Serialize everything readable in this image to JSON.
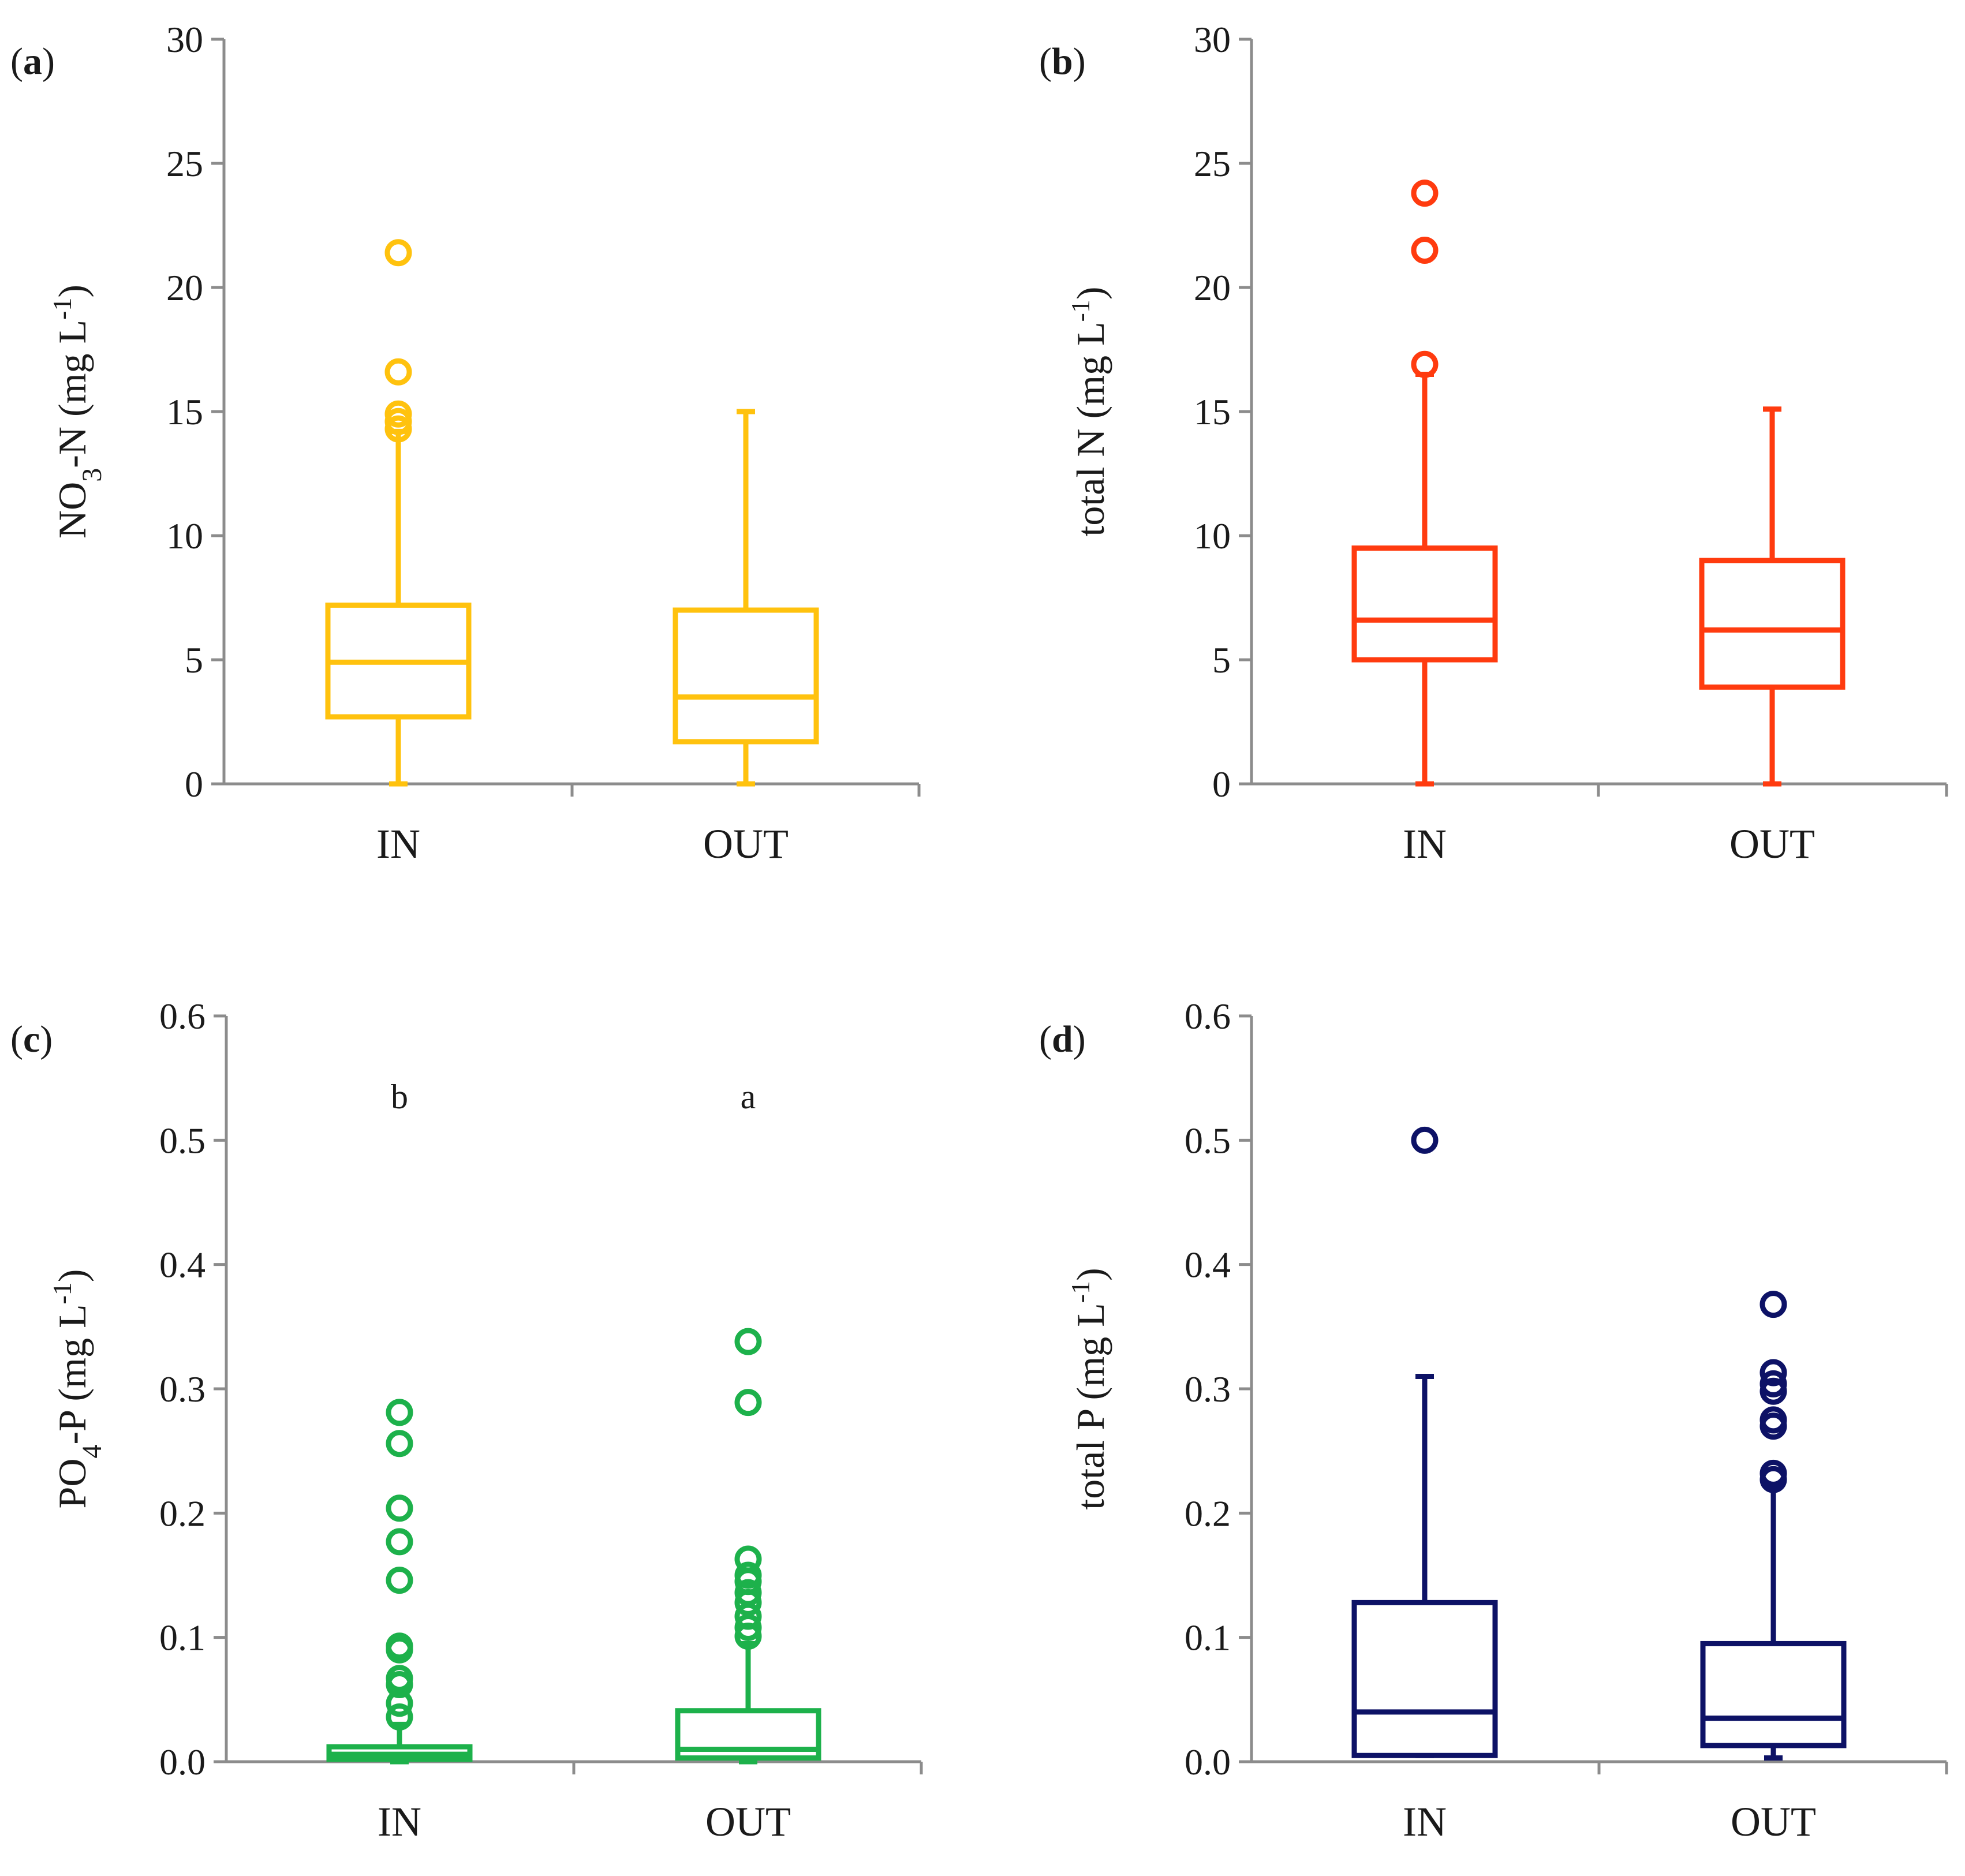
{
  "chart_data": [
    {
      "panel": "a",
      "type": "box",
      "color": "#FFC20E",
      "ylabel": {
        "main": "NO",
        "sub": "3",
        "rest": "-N (mg L",
        "sup": "-1",
        "end": ")"
      },
      "ylim": [
        0,
        30
      ],
      "yticks": [
        "0",
        "5",
        "10",
        "15",
        "20",
        "25",
        "30"
      ],
      "tickvalues": [
        0,
        5,
        10,
        15,
        20,
        25,
        30
      ],
      "categories": [
        "IN",
        "OUT"
      ],
      "boxes": [
        {
          "min": 0,
          "q1": 2.7,
          "median": 4.9,
          "q3": 7.2,
          "max": 14.2,
          "outliers": [
            14.3,
            14.6,
            14.9,
            16.6,
            21.4
          ]
        },
        {
          "min": 0,
          "q1": 1.7,
          "median": 3.5,
          "q3": 7.0,
          "max": 15.0,
          "outliers": []
        }
      ],
      "significance": []
    },
    {
      "panel": "b",
      "type": "box",
      "color": "#FF3B0F",
      "ylabel": {
        "main": "total N (mg L",
        "sub": "",
        "rest": "",
        "sup": "-1",
        "end": ")"
      },
      "ylim": [
        0,
        30
      ],
      "yticks": [
        "0",
        "5",
        "10",
        "15",
        "20",
        "25",
        "30"
      ],
      "tickvalues": [
        0,
        5,
        10,
        15,
        20,
        25,
        30
      ],
      "categories": [
        "IN",
        "OUT"
      ],
      "boxes": [
        {
          "min": 0,
          "q1": 5.0,
          "median": 6.6,
          "q3": 9.5,
          "max": 16.5,
          "outliers": [
            16.9,
            21.5,
            23.8
          ]
        },
        {
          "min": 0,
          "q1": 3.9,
          "median": 6.2,
          "q3": 9.0,
          "max": 15.1,
          "outliers": []
        }
      ],
      "significance": []
    },
    {
      "panel": "c",
      "type": "box",
      "color": "#1DB14B",
      "ylabel": {
        "main": "PO",
        "sub": "4",
        "rest": "-P (mg L",
        "sup": "-1",
        "end": ")"
      },
      "ylim": [
        0,
        0.6
      ],
      "yticks": [
        "0.0",
        "0.1",
        "0.2",
        "0.3",
        "0.4",
        "0.5",
        "0.6"
      ],
      "tickvalues": [
        0,
        0.1,
        0.2,
        0.3,
        0.4,
        0.5,
        0.6
      ],
      "categories": [
        "IN",
        "OUT"
      ],
      "boxes": [
        {
          "min": 0,
          "q1": 0.002,
          "median": 0.006,
          "q3": 0.012,
          "max": 0.03,
          "outliers": [
            0.036,
            0.047,
            0.062,
            0.067,
            0.09,
            0.093,
            0.146,
            0.177,
            0.204,
            0.256,
            0.281
          ]
        },
        {
          "min": 0,
          "q1": 0.003,
          "median": 0.01,
          "q3": 0.041,
          "max": 0.095,
          "outliers": [
            0.101,
            0.108,
            0.117,
            0.128,
            0.136,
            0.145,
            0.15,
            0.163,
            0.289,
            0.338
          ]
        }
      ],
      "significance": [
        "b",
        "a"
      ]
    },
    {
      "panel": "d",
      "type": "box",
      "color": "#0D1266",
      "ylabel": {
        "main": "total P (mg L",
        "sub": "",
        "rest": "",
        "sup": "-1",
        "end": ")"
      },
      "ylim": [
        0,
        0.6
      ],
      "yticks": [
        "0.0",
        "0.1",
        "0.2",
        "0.3",
        "0.4",
        "0.5",
        "0.6"
      ],
      "tickvalues": [
        0,
        0.1,
        0.2,
        0.3,
        0.4,
        0.5,
        0.6
      ],
      "categories": [
        "IN",
        "OUT"
      ],
      "boxes": [
        {
          "min": 0.005,
          "q1": 0.005,
          "median": 0.04,
          "q3": 0.128,
          "max": 0.31,
          "outliers": [
            0.5
          ]
        },
        {
          "min": 0.003,
          "q1": 0.013,
          "median": 0.035,
          "q3": 0.095,
          "max": 0.222,
          "outliers": [
            0.227,
            0.232,
            0.27,
            0.275,
            0.298,
            0.304,
            0.313,
            0.368
          ]
        }
      ],
      "significance": []
    }
  ],
  "panel_labels": {
    "a": {
      "open": "(",
      "letter": "a",
      "close": ")"
    },
    "b": {
      "open": "(",
      "letter": "b",
      "close": ")"
    },
    "c": {
      "open": "(",
      "letter": "c",
      "close": ")"
    },
    "d": {
      "open": "(",
      "letter": "d",
      "close": ")"
    }
  }
}
